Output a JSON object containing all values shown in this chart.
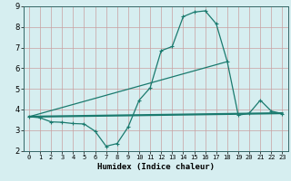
{
  "xlabel": "Humidex (Indice chaleur)",
  "xlim": [
    -0.5,
    23.5
  ],
  "ylim": [
    2,
    9
  ],
  "yticks": [
    2,
    3,
    4,
    5,
    6,
    7,
    8,
    9
  ],
  "xticks": [
    0,
    1,
    2,
    3,
    4,
    5,
    6,
    7,
    8,
    9,
    10,
    11,
    12,
    13,
    14,
    15,
    16,
    17,
    18,
    19,
    20,
    21,
    22,
    23
  ],
  "bg_color": "#d6eef0",
  "grid_color": "#c8dfe0",
  "line_color": "#1a7a6e",
  "line1_x": [
    0,
    1,
    2,
    3,
    4,
    5,
    6,
    7,
    8,
    9,
    10,
    11,
    12,
    13,
    14,
    15,
    16,
    17,
    18,
    19,
    20,
    21,
    22,
    23
  ],
  "line1_y": [
    3.65,
    3.6,
    3.4,
    3.38,
    3.32,
    3.3,
    2.95,
    2.22,
    2.35,
    3.15,
    4.45,
    5.05,
    6.85,
    7.05,
    8.5,
    8.72,
    8.78,
    8.15,
    6.32,
    3.72,
    3.82,
    4.45,
    3.92,
    3.8
  ],
  "line2_x": [
    0,
    23
  ],
  "line2_y": [
    3.65,
    3.82
  ],
  "line3_x": [
    0,
    18
  ],
  "line3_y": [
    3.65,
    6.32
  ],
  "line1_lw": 0.9,
  "line2_lw": 1.6,
  "line3_lw": 0.9
}
